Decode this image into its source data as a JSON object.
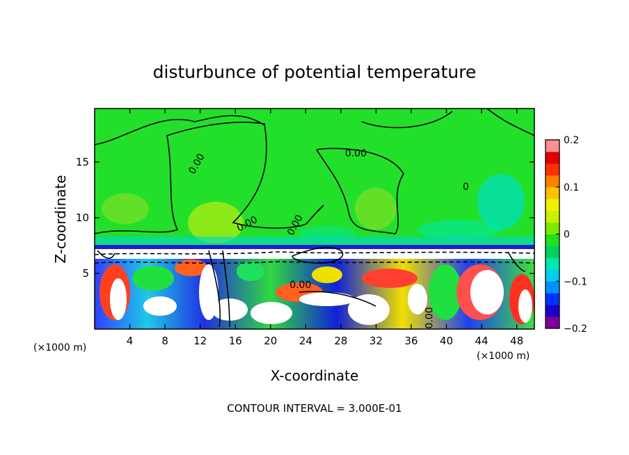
{
  "chart_data": {
    "type": "heatmap",
    "title": "disturbunce of potential temperature",
    "xlabel": "X-coordinate",
    "ylabel": "Z-coordinate",
    "x_unit_left": "(×1000 m)",
    "x_unit_right": "(×1000 m)",
    "footer": "CONTOUR INTERVAL = 3.000E-01",
    "xlim": [
      0,
      50
    ],
    "ylim": [
      0,
      19.8
    ],
    "x_ticks": [
      4,
      8,
      12,
      16,
      20,
      24,
      28,
      32,
      36,
      40,
      44,
      48
    ],
    "y_ticks": [
      5,
      10,
      15
    ],
    "colorbar": {
      "min": -0.2,
      "max": 0.2,
      "tick_values": [
        0.2,
        0.1,
        0,
        -0.1,
        -0.2
      ],
      "tick_labels": [
        "0.2",
        "0.1",
        "0",
        "−0.1",
        "−0.2"
      ],
      "colors": [
        "#7f00a0",
        "#1a00c8",
        "#0030ff",
        "#0090ff",
        "#00ccee",
        "#00e8b0",
        "#00d060",
        "#20e020",
        "#7fe800",
        "#c8ee00",
        "#f0f000",
        "#ffc000",
        "#ff8000",
        "#ff3000",
        "#e00000",
        "#ff9090"
      ]
    },
    "contour_labels": [
      {
        "text": "0.00",
        "x": 11.9,
        "z": 14.7,
        "angle": -60
      },
      {
        "text": "0.00",
        "x": 29.7,
        "z": 15.5,
        "angle": 0
      },
      {
        "text": "0.00",
        "x": 17.5,
        "z": 9.2,
        "angle": -28
      },
      {
        "text": "0.00",
        "x": 23.1,
        "z": 9.2,
        "angle": -62
      },
      {
        "text": "0.00",
        "x": 23.4,
        "z": 3.7,
        "angle": 0
      },
      {
        "text": "0.00",
        "x": 38.4,
        "z": 1.0,
        "angle": -90
      },
      {
        "text": "0",
        "x": 42.2,
        "z": 12.5,
        "angle": 0
      }
    ]
  }
}
